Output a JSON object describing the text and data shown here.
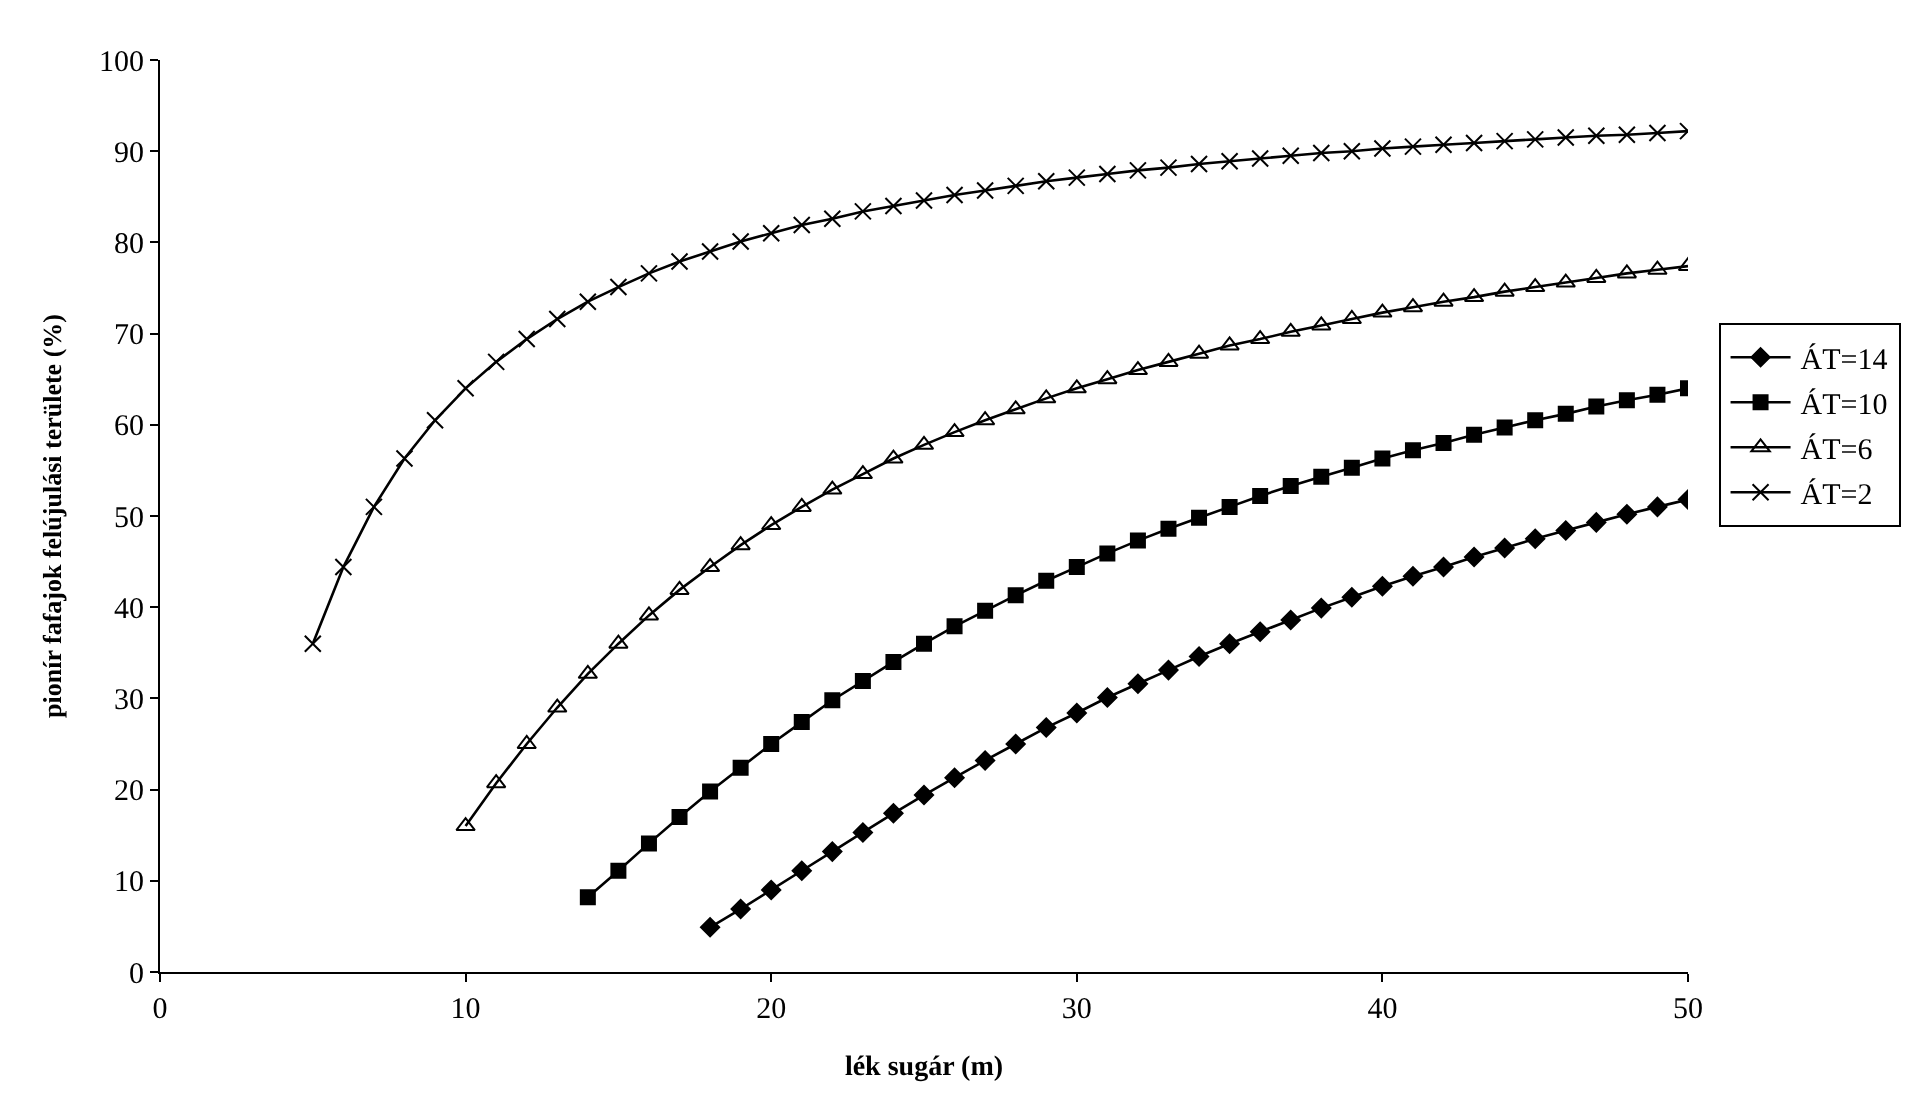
{
  "chart_data": {
    "type": "line",
    "xlabel": "lék sugár (m)",
    "ylabel": "pionír fafajok felújulási területe (%)",
    "xlim": [
      0,
      50
    ],
    "xticks": [
      0,
      10,
      20,
      30,
      40,
      50
    ],
    "ylim": [
      0,
      100
    ],
    "yticks": [
      0,
      10,
      20,
      30,
      40,
      50,
      60,
      70,
      80,
      90,
      100
    ],
    "grid": false,
    "legend": "right",
    "line_style": "solid",
    "series": [
      {
        "name": "ÁT=14",
        "color": "#000000",
        "marker": "diamond",
        "x": [
          18,
          19,
          20,
          21,
          22,
          23,
          24,
          25,
          26,
          27,
          28,
          29,
          30,
          31,
          32,
          33,
          34,
          35,
          36,
          37,
          38,
          39,
          40,
          41,
          42,
          43,
          44,
          45,
          46,
          47,
          48,
          49,
          50
        ],
        "values": [
          4.9,
          6.9,
          9.0,
          11.1,
          13.2,
          15.3,
          17.4,
          19.4,
          21.3,
          23.2,
          25.0,
          26.8,
          28.4,
          30.1,
          31.6,
          33.1,
          34.6,
          36.0,
          37.3,
          38.6,
          39.9,
          41.1,
          42.3,
          43.4,
          44.4,
          45.5,
          46.5,
          47.5,
          48.4,
          49.3,
          50.2,
          51.0,
          51.8
        ]
      },
      {
        "name": "ÁT=10",
        "color": "#000000",
        "marker": "square",
        "x": [
          14,
          15,
          16,
          17,
          18,
          19,
          20,
          21,
          22,
          23,
          24,
          25,
          26,
          27,
          28,
          29,
          30,
          31,
          32,
          33,
          34,
          35,
          36,
          37,
          38,
          39,
          40,
          41,
          42,
          43,
          44,
          45,
          46,
          47,
          48,
          49,
          50
        ],
        "values": [
          8.2,
          11.1,
          14.1,
          17.0,
          19.8,
          22.4,
          25.0,
          27.4,
          29.8,
          31.9,
          34.0,
          36.0,
          37.9,
          39.6,
          41.3,
          42.9,
          44.4,
          45.9,
          47.3,
          48.6,
          49.8,
          51.0,
          52.2,
          53.3,
          54.3,
          55.3,
          56.3,
          57.2,
          58.0,
          58.9,
          59.7,
          60.5,
          61.2,
          62.0,
          62.7,
          63.3,
          64.0
        ]
      },
      {
        "name": "ÁT=6",
        "color": "#000000",
        "marker": "triangle",
        "x": [
          10,
          11,
          12,
          13,
          14,
          15,
          16,
          17,
          18,
          19,
          20,
          21,
          22,
          23,
          24,
          25,
          26,
          27,
          28,
          29,
          30,
          31,
          32,
          33,
          34,
          35,
          36,
          37,
          38,
          39,
          40,
          41,
          42,
          43,
          44,
          45,
          46,
          47,
          48,
          49,
          50
        ],
        "values": [
          16.0,
          20.7,
          25.0,
          29.0,
          32.7,
          36.0,
          39.1,
          41.9,
          44.4,
          46.8,
          49.0,
          51.0,
          52.9,
          54.6,
          56.3,
          57.8,
          59.2,
          60.5,
          61.7,
          62.9,
          64.0,
          65.0,
          66.0,
          66.9,
          67.8,
          68.7,
          69.4,
          70.2,
          70.9,
          71.6,
          72.3,
          72.9,
          73.5,
          74.0,
          74.6,
          75.1,
          75.6,
          76.1,
          76.6,
          77.0,
          77.4
        ]
      },
      {
        "name": "ÁT=2",
        "color": "#000000",
        "marker": "cross",
        "x": [
          5,
          6,
          7,
          8,
          9,
          10,
          11,
          12,
          13,
          14,
          15,
          16,
          17,
          18,
          19,
          20,
          21,
          22,
          23,
          24,
          25,
          26,
          27,
          28,
          29,
          30,
          31,
          32,
          33,
          34,
          35,
          36,
          37,
          38,
          39,
          40,
          41,
          42,
          43,
          44,
          45,
          46,
          47,
          48,
          49,
          50
        ],
        "values": [
          36.0,
          44.4,
          51.0,
          56.3,
          60.5,
          64.0,
          66.9,
          69.4,
          71.6,
          73.5,
          75.1,
          76.6,
          77.9,
          79.0,
          80.1,
          81.0,
          81.9,
          82.6,
          83.4,
          84.0,
          84.6,
          85.2,
          85.7,
          86.2,
          86.7,
          87.1,
          87.5,
          87.9,
          88.2,
          88.6,
          88.9,
          89.2,
          89.5,
          89.8,
          90.0,
          90.3,
          90.5,
          90.7,
          90.9,
          91.1,
          91.3,
          91.5,
          91.7,
          91.8,
          92.0,
          92.2
        ]
      }
    ]
  }
}
